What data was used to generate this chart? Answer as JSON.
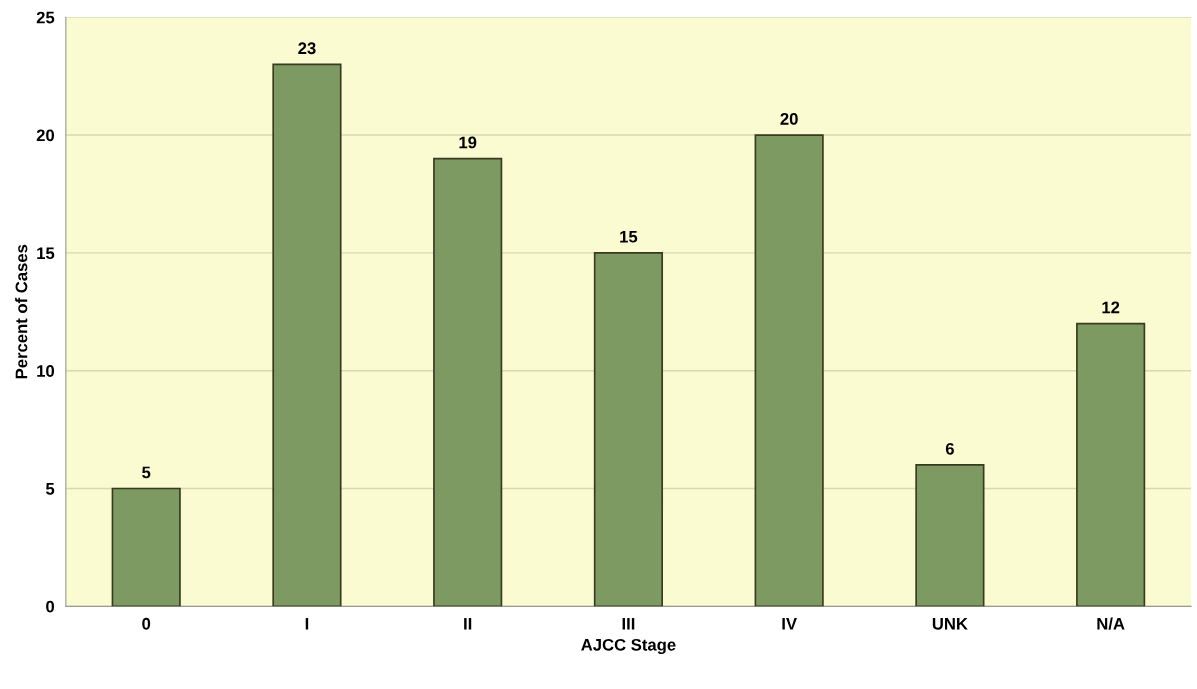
{
  "chart_data": {
    "type": "bar",
    "xlabel": "AJCC Stage",
    "ylabel": "Percent of Cases",
    "categories": [
      "0",
      "I",
      "II",
      "III",
      "IV",
      "UNK",
      "N/A"
    ],
    "values": [
      5,
      23,
      19,
      15,
      20,
      6,
      12
    ],
    "color": "#7d9a62",
    "ylim": [
      0,
      25
    ],
    "yticks": [
      0,
      5,
      10,
      15,
      20,
      25
    ],
    "grid": "y",
    "data_labels": true
  }
}
